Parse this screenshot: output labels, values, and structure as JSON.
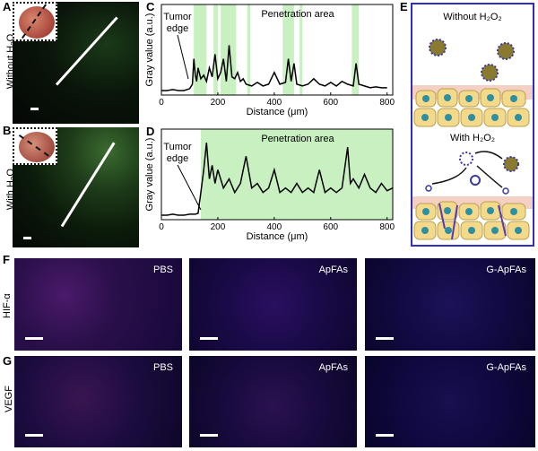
{
  "panels": {
    "A": {
      "letter": "A",
      "row_label_main": "Without H",
      "row_label_sub": "2",
      "row_label_end": "O"
    },
    "B": {
      "letter": "B",
      "row_label_main": "With H",
      "row_label_sub": "2",
      "row_label_end": "O"
    },
    "C": {
      "letter": "C",
      "annotation": "Tumor\nedge",
      "area_label": "Penetration area"
    },
    "D": {
      "letter": "D",
      "annotation": "Tumor\nedge",
      "area_label": "Penetration area"
    },
    "E": {
      "letter": "E",
      "top_label": "Without H₂O₂",
      "bottom_label": "With H₂O₂"
    },
    "F": {
      "letter": "F",
      "row_label": "HIF-α",
      "images": [
        "PBS",
        "ApFAs",
        "G-ApFAs"
      ]
    },
    "G": {
      "letter": "G",
      "row_label": "VEGF",
      "images": [
        "PBS",
        "ApFAs",
        "G-ApFAs"
      ]
    }
  },
  "colors": {
    "penetration_fill": "#c8f0c0",
    "border_blue": "#2f2fbf",
    "cell_yellow": "#f5d98a",
    "nucleus_teal": "#2e8fa0"
  },
  "chart_data": [
    {
      "type": "line",
      "title": "",
      "xlabel": "Distance (μm)",
      "ylabel": "Gray value (a.u.)",
      "xlim": [
        0,
        820
      ],
      "xticks": [
        "0",
        "200",
        "400",
        "600",
        "800"
      ],
      "penetration_bands": [
        [
          115,
          160
        ],
        [
          185,
          200
        ],
        [
          210,
          265
        ],
        [
          305,
          315
        ],
        [
          430,
          470
        ],
        [
          490,
          500
        ],
        [
          675,
          700
        ]
      ],
      "x": [
        0,
        20,
        40,
        60,
        80,
        100,
        110,
        115,
        120,
        125,
        130,
        140,
        150,
        160,
        170,
        180,
        190,
        200,
        210,
        220,
        230,
        240,
        250,
        260,
        270,
        280,
        290,
        300,
        320,
        340,
        360,
        380,
        400,
        420,
        440,
        450,
        460,
        470,
        480,
        500,
        520,
        540,
        560,
        580,
        600,
        620,
        640,
        660,
        680,
        690,
        700,
        720,
        740,
        760,
        780,
        800
      ],
      "y": [
        0.05,
        0.05,
        0.06,
        0.05,
        0.05,
        0.07,
        0.12,
        0.4,
        0.22,
        0.15,
        0.3,
        0.18,
        0.22,
        0.15,
        0.3,
        0.2,
        0.45,
        0.18,
        0.25,
        0.4,
        0.15,
        0.55,
        0.2,
        0.18,
        0.25,
        0.15,
        0.18,
        0.12,
        0.1,
        0.14,
        0.1,
        0.12,
        0.25,
        0.12,
        0.14,
        0.4,
        0.15,
        0.35,
        0.12,
        0.1,
        0.12,
        0.18,
        0.12,
        0.1,
        0.14,
        0.1,
        0.15,
        0.12,
        0.1,
        0.35,
        0.12,
        0.1,
        0.08,
        0.09,
        0.08,
        0.08
      ]
    },
    {
      "type": "line",
      "title": "",
      "xlabel": "Distance (μm)",
      "ylabel": "Gray value (a.u.)",
      "xlim": [
        0,
        820
      ],
      "xticks": [
        "0",
        "200",
        "400",
        "600",
        "800"
      ],
      "penetration_bands": [
        [
          140,
          820
        ]
      ],
      "x": [
        0,
        20,
        40,
        60,
        80,
        100,
        120,
        130,
        140,
        150,
        160,
        170,
        180,
        190,
        200,
        220,
        240,
        260,
        280,
        300,
        320,
        340,
        360,
        380,
        400,
        420,
        440,
        460,
        480,
        500,
        520,
        540,
        560,
        580,
        600,
        620,
        640,
        660,
        670,
        680,
        700,
        720,
        740,
        760,
        780,
        800,
        820
      ],
      "y": [
        0.05,
        0.05,
        0.06,
        0.05,
        0.05,
        0.06,
        0.06,
        0.07,
        0.3,
        0.55,
        0.85,
        0.45,
        0.6,
        0.4,
        0.55,
        0.35,
        0.45,
        0.3,
        0.4,
        0.7,
        0.35,
        0.4,
        0.3,
        0.35,
        0.55,
        0.3,
        0.35,
        0.3,
        0.4,
        0.3,
        0.35,
        0.3,
        0.55,
        0.3,
        0.35,
        0.3,
        0.35,
        0.8,
        0.4,
        0.45,
        0.35,
        0.5,
        0.35,
        0.3,
        0.4,
        0.32,
        0.35
      ]
    }
  ]
}
